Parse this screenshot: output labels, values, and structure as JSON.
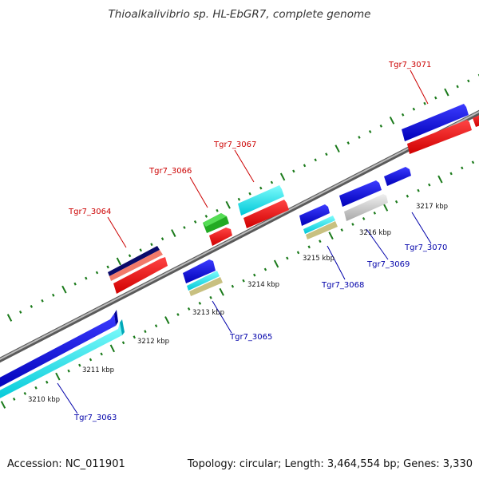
{
  "title": "Thioalkalivibrio sp. HL-EbGR7, complete genome",
  "footer": {
    "accession": "Accession: NC_011901",
    "summary": "Topology: circular; Length: 3,464,554 bp; Genes: 3,330"
  },
  "colors": {
    "background": "#ffffff",
    "backbone": "#888888",
    "tick": "#1a7a1a",
    "label_top": "#cc0000",
    "label_bottom": "#0000aa",
    "leader_top": "#cc0000",
    "leader_bottom": "#0000aa"
  },
  "kbp_labels": [
    "3210 kbp",
    "3211 kbp",
    "3212 kbp",
    "3213 kbp",
    "3214 kbp",
    "3215 kbp",
    "3216 kbp",
    "3217 kbp"
  ],
  "gene_labels_top": [
    "Tgr7_3064",
    "Tgr7_3066",
    "Tgr7_3067",
    "Tgr7_3071"
  ],
  "gene_labels_bottom": [
    "Tgr7_3063",
    "Tgr7_3065",
    "Tgr7_3068",
    "Tgr7_3069",
    "Tgr7_3070"
  ]
}
